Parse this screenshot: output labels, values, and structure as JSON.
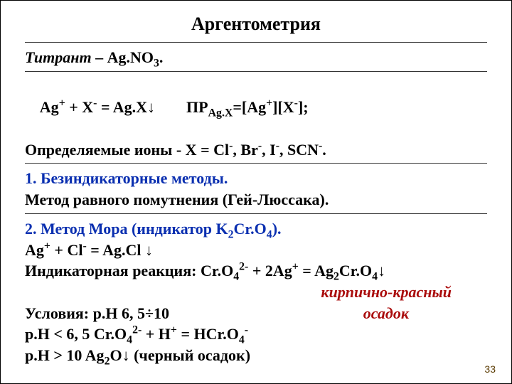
{
  "title": "Аргентометрия",
  "titrant_label": "Титрант",
  "titrant_dash": " – ",
  "titrant_val_a": "Ag.NO",
  "titrant_val_sub": "3",
  "titrant_dot": ".",
  "eq_ag": "Ag",
  "eq_plus": "+",
  "eq_x": " + X",
  "eq_minus": "-",
  "eq_eq": " = Ag.X",
  "eq_darrow": "↓",
  "eq_sp_pp": "        ПР",
  "eq_sp_sub": "Ag.X",
  "eq_sp_eq": "=[Ag",
  "eq_sp_br1": "][X",
  "eq_sp_br2": "];",
  "ions_lbl": " Определяемые ионы -   X = Cl",
  "ions_br": ", Br",
  "ions_i": ", I",
  "ions_scn": ", SCN",
  "ions_dot": ".",
  "m1_num": "1.",
  "m1_title": " Безиндикаторные методы.",
  "m1_sub": "Метод равного помутнения (Гей-Люссака).",
  "m2_num": "2. Метод Мора (индикатор K",
  "m2_k_sub": "2",
  "m2_cr": "Cr.O",
  "m2_cr_sub": "4",
  "m2_close": ").",
  "m2_eq_ag": "Ag",
  "m2_eq_p": " + Cl",
  "m2_eq_eq": " = Ag.Cl ",
  "m2_ind_lbl": "Индикаторная реакция: Cr.O",
  "m2_ind_sup": "2-",
  "m2_ind_p": " + 2Ag",
  "m2_ind_eq": " = Ag",
  "m2_ind_ag2": "2",
  "red1": "кирпично-красный",
  "cond_lbl": "Условия: p.H 6, 5÷10",
  "red2": "осадок",
  "ph1_a": "p.H < 6, 5    Cr.O",
  "ph1_b": " + H",
  "ph1_c": " = HCr.O",
  "ph2_a": "p.H > 10       Ag",
  "ph2_o": "O",
  "ph2_b": " (черный осадок)",
  "pagenum": "33",
  "colors": {
    "blue": "#0a2fb0",
    "red": "#aa0c0c",
    "text": "#000000",
    "bg": "#ffffff"
  }
}
